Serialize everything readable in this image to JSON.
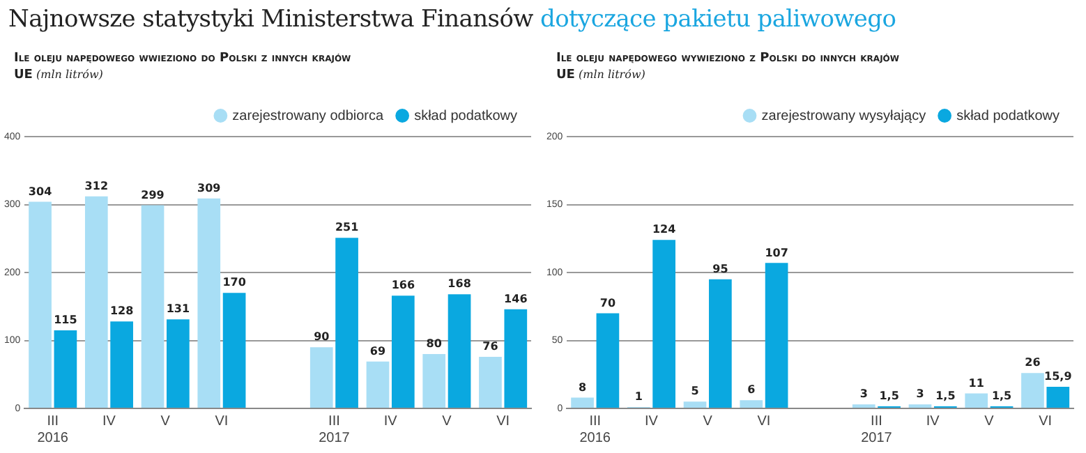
{
  "chart_data": [
    {
      "type": "bar",
      "title": "Ile oleju napędowego wwieziono do Polski z innych krajów UE",
      "subtitle": "(mln litrów)",
      "annotations": [
        "Najnowsze statystyki Ministerstwa Finansów",
        "dotyczące pakietu paliwowego"
      ],
      "categories": [
        "III\n2016",
        "IV",
        "V",
        "VI",
        null,
        "III\n2017",
        "IV",
        "V",
        "VI"
      ],
      "series": [
        {
          "name": "zarejestrowany odbiorca",
          "color": "#a8def5",
          "values": [
            304,
            312,
            299,
            309,
            null,
            90,
            69,
            80,
            76
          ]
        },
        {
          "name": "skład podatkowy",
          "color": "#0aa8e0",
          "values": [
            115,
            128,
            131,
            170,
            null,
            251,
            166,
            168,
            146
          ]
        }
      ],
      "ylim": [
        0,
        400
      ],
      "yticks": [
        0,
        100,
        200,
        300,
        400
      ],
      "grid": "y",
      "legend": "top right",
      "data_labels": true
    },
    {
      "type": "bar",
      "title": "Ile oleju napędowego wywieziono z Polski do innych krajów UE",
      "subtitle": "(mln litrów)",
      "categories": [
        "III\n2016",
        "IV",
        "V",
        "VI",
        null,
        "III\n2017",
        "IV",
        "V",
        "VI"
      ],
      "series": [
        {
          "name": "zarejestrowany wysyłający",
          "color": "#a8def5",
          "values": [
            8,
            1,
            5,
            6,
            null,
            3,
            3,
            11,
            26
          ],
          "value_labels": [
            "8",
            "1",
            "5",
            "6",
            null,
            "3",
            "3",
            "11",
            "26"
          ]
        },
        {
          "name": "skład podatkowy",
          "color": "#0aa8e0",
          "values": [
            70,
            124,
            95,
            107,
            null,
            1.5,
            1.5,
            1.5,
            15.9
          ],
          "value_labels": [
            "70",
            "124",
            "95",
            "107",
            null,
            "1,5",
            "1,5",
            "1,5",
            "15,9"
          ]
        }
      ],
      "ylim": [
        0,
        200
      ],
      "yticks": [
        0,
        50,
        100,
        150,
        200
      ],
      "grid": "y",
      "legend": "top right"
    }
  ]
}
